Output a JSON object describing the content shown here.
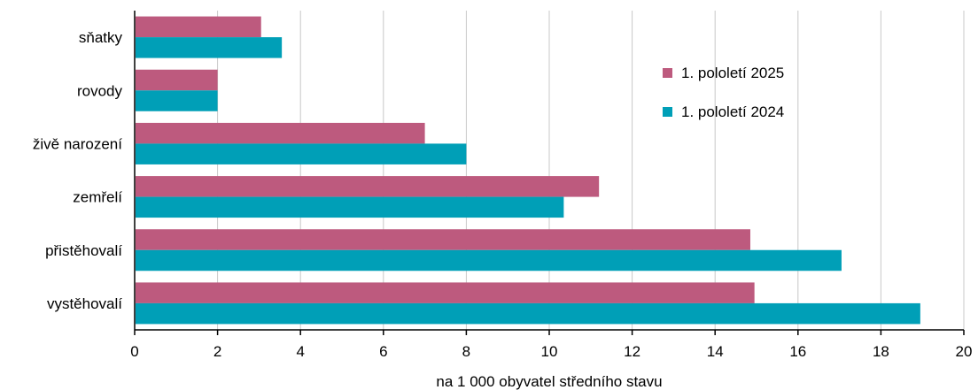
{
  "chart_data": {
    "type": "bar",
    "orientation": "horizontal",
    "title": "",
    "xlabel": "na 1 000 obyvatel středního stavu",
    "ylabel": "",
    "xlim": [
      0,
      20
    ],
    "xticks": [
      "0",
      "2",
      "4",
      "6",
      "8",
      "10",
      "12",
      "14",
      "16",
      "18",
      "20"
    ],
    "grid": true,
    "legend_position": "upper right",
    "categories": [
      "sňatky",
      "rovody",
      "živě narození",
      "zemřelí",
      "přistěhovalí",
      "vystěhovalí"
    ],
    "series": [
      {
        "name": "1. pololetí 2025",
        "color": "#bd5a7e",
        "values": [
          3.05,
          2.0,
          7.0,
          11.2,
          14.85,
          14.95
        ]
      },
      {
        "name": "1. pololetí 2024",
        "color": "#009fb7",
        "values": [
          3.55,
          2.0,
          8.0,
          10.35,
          17.05,
          18.95
        ]
      }
    ]
  }
}
